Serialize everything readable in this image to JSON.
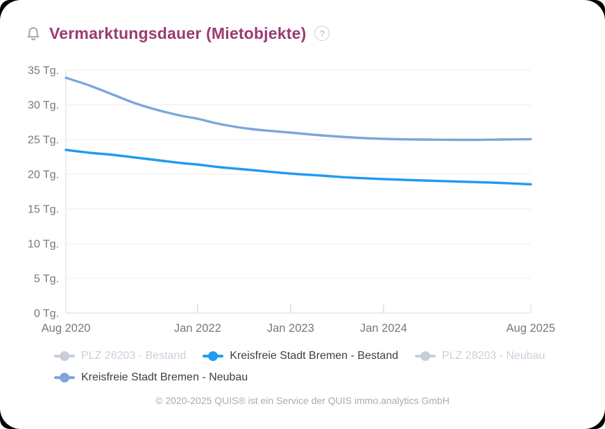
{
  "header": {
    "title": "Vermarktungsdauer (Mietobjekte)",
    "bell_icon": "bell-icon",
    "help_icon": "question-mark-icon",
    "help_glyph": "?"
  },
  "colors": {
    "title": "#9a3b72",
    "bestand_blue": "#219af2",
    "neubau_blue": "#7da6da",
    "disabled_gray": "#c6ced8",
    "axis_text": "#74797e",
    "gridline": "#ecedf1",
    "axis_line": "#d8dadf"
  },
  "legend": {
    "items": [
      {
        "label": "PLZ 28203 - Bestand",
        "color": "#c6ced8",
        "state": "disabled"
      },
      {
        "label": "Kreisfreie Stadt Bremen - Bestand",
        "color": "#219af2",
        "state": "active"
      },
      {
        "label": "PLZ 28203 - Neubau",
        "color": "#c6ced8",
        "state": "disabled"
      },
      {
        "label": "Kreisfreie Stadt Bremen - Neubau",
        "color": "#7da6da",
        "state": "active"
      }
    ]
  },
  "chart_data": {
    "type": "line",
    "title": "Vermarktungsdauer (Mietobjekte)",
    "y_unit": "Tg.",
    "ylim": [
      0,
      35
    ],
    "ytick_step": 5,
    "xlim": [
      0,
      60
    ],
    "x_unit": "months_since_aug_2020",
    "xticks": [
      {
        "label": "Aug 2020",
        "m": 0
      },
      {
        "label": "Jan 2022",
        "m": 17
      },
      {
        "label": "Jan 2023",
        "m": 29
      },
      {
        "label": "Jan 2024",
        "m": 41
      },
      {
        "label": "Aug 2025",
        "m": 60
      }
    ],
    "grid": true,
    "legend_position": "bottom",
    "series": [
      {
        "name": "PLZ 28203 - Bestand",
        "color": "#c6ced8",
        "visible": false,
        "points": []
      },
      {
        "name": "Kreisfreie Stadt Bremen - Bestand",
        "color": "#219af2",
        "visible": true,
        "points": [
          [
            0,
            23.5
          ],
          [
            3,
            23.1
          ],
          [
            6,
            22.8
          ],
          [
            9,
            22.4
          ],
          [
            12,
            22.0
          ],
          [
            15,
            21.6
          ],
          [
            17,
            21.4
          ],
          [
            20,
            21.0
          ],
          [
            24,
            20.6
          ],
          [
            29,
            20.1
          ],
          [
            33,
            19.8
          ],
          [
            37,
            19.5
          ],
          [
            41,
            19.3
          ],
          [
            46,
            19.1
          ],
          [
            52,
            18.9
          ],
          [
            56,
            18.75
          ],
          [
            60,
            18.55
          ]
        ]
      },
      {
        "name": "PLZ 28203 - Neubau",
        "color": "#c6ced8",
        "visible": false,
        "points": []
      },
      {
        "name": "Kreisfreie Stadt Bremen - Neubau",
        "color": "#7da6da",
        "visible": true,
        "points": [
          [
            0,
            33.9
          ],
          [
            3,
            32.8
          ],
          [
            6,
            31.5
          ],
          [
            9,
            30.2
          ],
          [
            12,
            29.2
          ],
          [
            15,
            28.4
          ],
          [
            17,
            28.0
          ],
          [
            20,
            27.2
          ],
          [
            24,
            26.5
          ],
          [
            29,
            26.0
          ],
          [
            33,
            25.6
          ],
          [
            37,
            25.3
          ],
          [
            41,
            25.1
          ],
          [
            46,
            25.0
          ],
          [
            52,
            24.95
          ],
          [
            56,
            25.0
          ],
          [
            60,
            25.05
          ]
        ]
      }
    ]
  },
  "footer": {
    "text": "© 2020-2025 QUIS® ist ein Service der QUIS immo.analytics GmbH"
  }
}
